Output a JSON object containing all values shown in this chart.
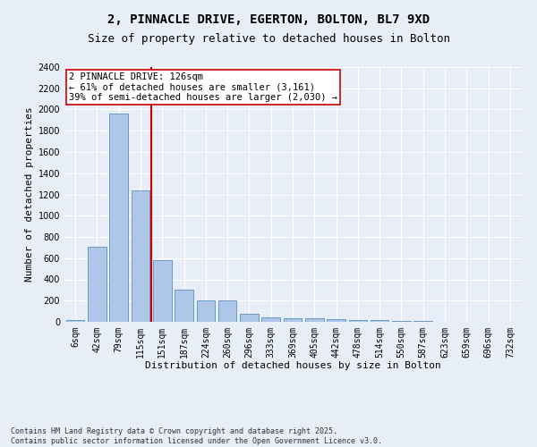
{
  "title_line1": "2, PINNACLE DRIVE, EGERTON, BOLTON, BL7 9XD",
  "title_line2": "Size of property relative to detached houses in Bolton",
  "xlabel": "Distribution of detached houses by size in Bolton",
  "ylabel": "Number of detached properties",
  "categories": [
    "6sqm",
    "42sqm",
    "79sqm",
    "115sqm",
    "151sqm",
    "187sqm",
    "224sqm",
    "260sqm",
    "296sqm",
    "333sqm",
    "369sqm",
    "405sqm",
    "442sqm",
    "478sqm",
    "514sqm",
    "550sqm",
    "587sqm",
    "623sqm",
    "659sqm",
    "696sqm",
    "732sqm"
  ],
  "values": [
    15,
    710,
    1960,
    1240,
    580,
    305,
    200,
    200,
    80,
    45,
    35,
    30,
    28,
    20,
    20,
    5,
    12,
    0,
    0,
    0,
    0
  ],
  "bar_color": "#aec6e8",
  "bar_edge_color": "#5a8fc0",
  "vline_color": "#cc0000",
  "annotation_text": "2 PINNACLE DRIVE: 126sqm\n← 61% of detached houses are smaller (3,161)\n39% of semi-detached houses are larger (2,030) →",
  "annotation_box_color": "#ffffff",
  "annotation_box_edge": "#cc0000",
  "ylim": [
    0,
    2400
  ],
  "yticks": [
    0,
    200,
    400,
    600,
    800,
    1000,
    1200,
    1400,
    1600,
    1800,
    2000,
    2200,
    2400
  ],
  "bg_color": "#e8eef7",
  "grid_color": "#ffffff",
  "footnote": "Contains HM Land Registry data © Crown copyright and database right 2025.\nContains public sector information licensed under the Open Government Licence v3.0.",
  "title_fontsize": 10,
  "subtitle_fontsize": 9,
  "axis_label_fontsize": 8,
  "tick_fontsize": 7,
  "annotation_fontsize": 7.5
}
